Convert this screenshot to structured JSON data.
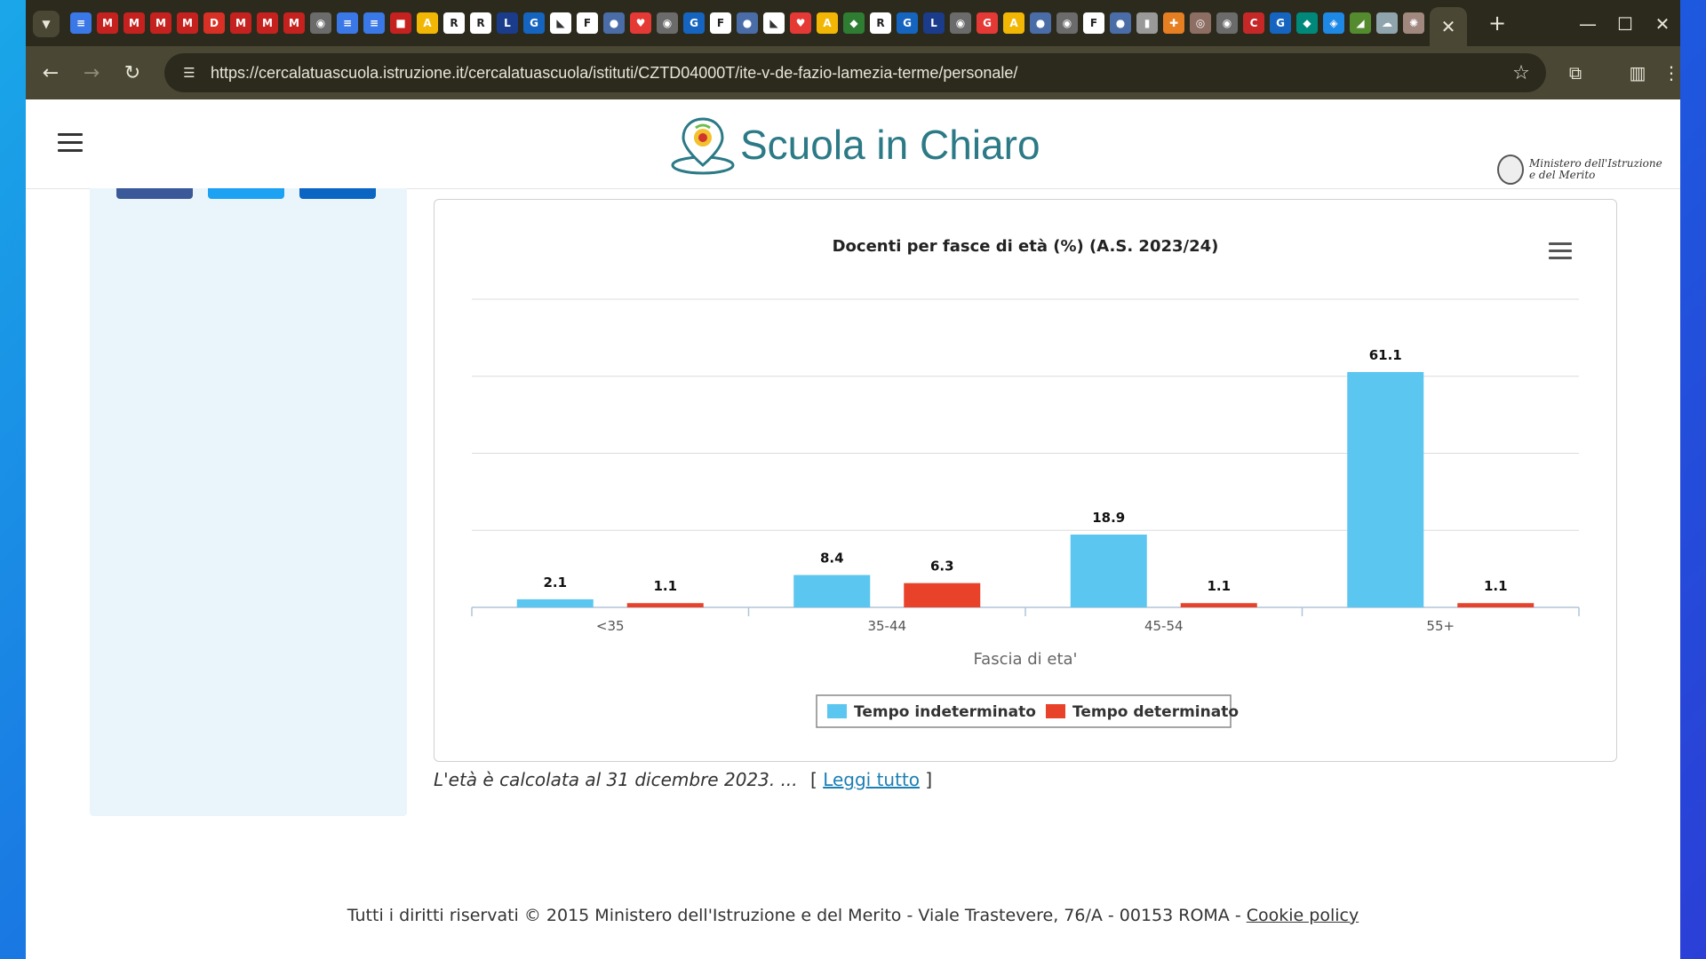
{
  "browser": {
    "url": "https://cercalatuascuola.istruzione.it/cercalatuascuola/istituti/CZTD04000T/ite-v-de-fazio-lamezia-terme/personale/",
    "tab_close": "✕",
    "new_tab": "+",
    "favicons": [
      {
        "glyph": "≡",
        "color": "#3b78e7"
      },
      {
        "glyph": "M",
        "color": "#c5221f"
      },
      {
        "glyph": "M",
        "color": "#c5221f"
      },
      {
        "glyph": "M",
        "color": "#c5221f"
      },
      {
        "glyph": "M",
        "color": "#c5221f"
      },
      {
        "glyph": "D",
        "color": "#d93025"
      },
      {
        "glyph": "M",
        "color": "#c5221f"
      },
      {
        "glyph": "M",
        "color": "#c5221f"
      },
      {
        "glyph": "M",
        "color": "#c5221f"
      },
      {
        "glyph": "◉",
        "color": "#6b6b6b"
      },
      {
        "glyph": "≡",
        "color": "#3b78e7"
      },
      {
        "glyph": "≡",
        "color": "#3b78e7"
      },
      {
        "glyph": "■",
        "color": "#c5221f"
      },
      {
        "glyph": "A",
        "color": "#f2b705"
      },
      {
        "glyph": "R",
        "color": "#222"
      },
      {
        "glyph": "R",
        "color": "#222"
      },
      {
        "glyph": "L",
        "color": "#1a3c8a"
      },
      {
        "glyph": "G",
        "color": "#1565c0"
      },
      {
        "glyph": "◣",
        "color": "#333"
      },
      {
        "glyph": "F",
        "color": "#222"
      },
      {
        "glyph": "●",
        "color": "#4a6da7"
      },
      {
        "glyph": "♥",
        "color": "#e53935"
      },
      {
        "glyph": "◉",
        "color": "#6b6b6b"
      },
      {
        "glyph": "G",
        "color": "#1565c0"
      },
      {
        "glyph": "F",
        "color": "#222"
      },
      {
        "glyph": "●",
        "color": "#4a6da7"
      },
      {
        "glyph": "◣",
        "color": "#333"
      },
      {
        "glyph": "♥",
        "color": "#e53935"
      },
      {
        "glyph": "A",
        "color": "#f2b705"
      },
      {
        "glyph": "◆",
        "color": "#2e7d32"
      },
      {
        "glyph": "R",
        "color": "#222"
      },
      {
        "glyph": "G",
        "color": "#1565c0"
      },
      {
        "glyph": "L",
        "color": "#1a3c8a"
      },
      {
        "glyph": "◉",
        "color": "#6b6b6b"
      },
      {
        "glyph": "G",
        "color": "#e53935"
      },
      {
        "glyph": "A",
        "color": "#f2b705"
      },
      {
        "glyph": "●",
        "color": "#4a6da7"
      },
      {
        "glyph": "◉",
        "color": "#6b6b6b"
      },
      {
        "glyph": "F",
        "color": "#222"
      },
      {
        "glyph": "●",
        "color": "#4a6da7"
      },
      {
        "glyph": "▮",
        "color": "#999"
      },
      {
        "glyph": "✚",
        "color": "#e67e22"
      },
      {
        "glyph": "◎",
        "color": "#8d6e63"
      },
      {
        "glyph": "◉",
        "color": "#6b6b6b"
      },
      {
        "glyph": "C",
        "color": "#c62828"
      },
      {
        "glyph": "G",
        "color": "#1565c0"
      },
      {
        "glyph": "◆",
        "color": "#00897b"
      },
      {
        "glyph": "◈",
        "color": "#1e88e5"
      },
      {
        "glyph": "◢",
        "color": "#558b2f"
      },
      {
        "glyph": "☁",
        "color": "#90a4ae"
      },
      {
        "glyph": "✺",
        "color": "#a1887f"
      }
    ]
  },
  "site": {
    "logo_text": "Scuola in Chiaro",
    "ministry_line1": "Ministero dell'Istruzione",
    "ministry_line2": "e del Merito"
  },
  "social_colors": [
    "#3b5998",
    "#1da1f2",
    "#0a66c2"
  ],
  "chart_data": {
    "type": "bar",
    "title": "Docenti per fasce di età (%) (A.S. 2023/24)",
    "categories": [
      "<35",
      "35-44",
      "45-54",
      "55+"
    ],
    "xlabel": "Fascia di eta'",
    "ylabel": "",
    "ylim": [
      0,
      80
    ],
    "gridlines": [
      0,
      20,
      40,
      60,
      80
    ],
    "grid": true,
    "legend_position": "bottom-center",
    "series": [
      {
        "name": "Tempo indeterminato",
        "color": "#5bc6ef",
        "values": [
          2.1,
          8.4,
          18.9,
          61.1
        ]
      },
      {
        "name": "Tempo determinato",
        "color": "#e8432a",
        "values": [
          1.1,
          6.3,
          1.1,
          1.1
        ]
      }
    ]
  },
  "footnote": {
    "text": "L'età è calcolata al 31 dicembre 2023. ...",
    "open_bracket": "[",
    "link": "Leggi tutto",
    "close_bracket": "]"
  },
  "footer": {
    "text": "Tutti i diritti riservati © 2015 Ministero dell'Istruzione e del Merito - Viale Trastevere, 76/A - 00153 ROMA - ",
    "cookie_link": "Cookie policy"
  }
}
